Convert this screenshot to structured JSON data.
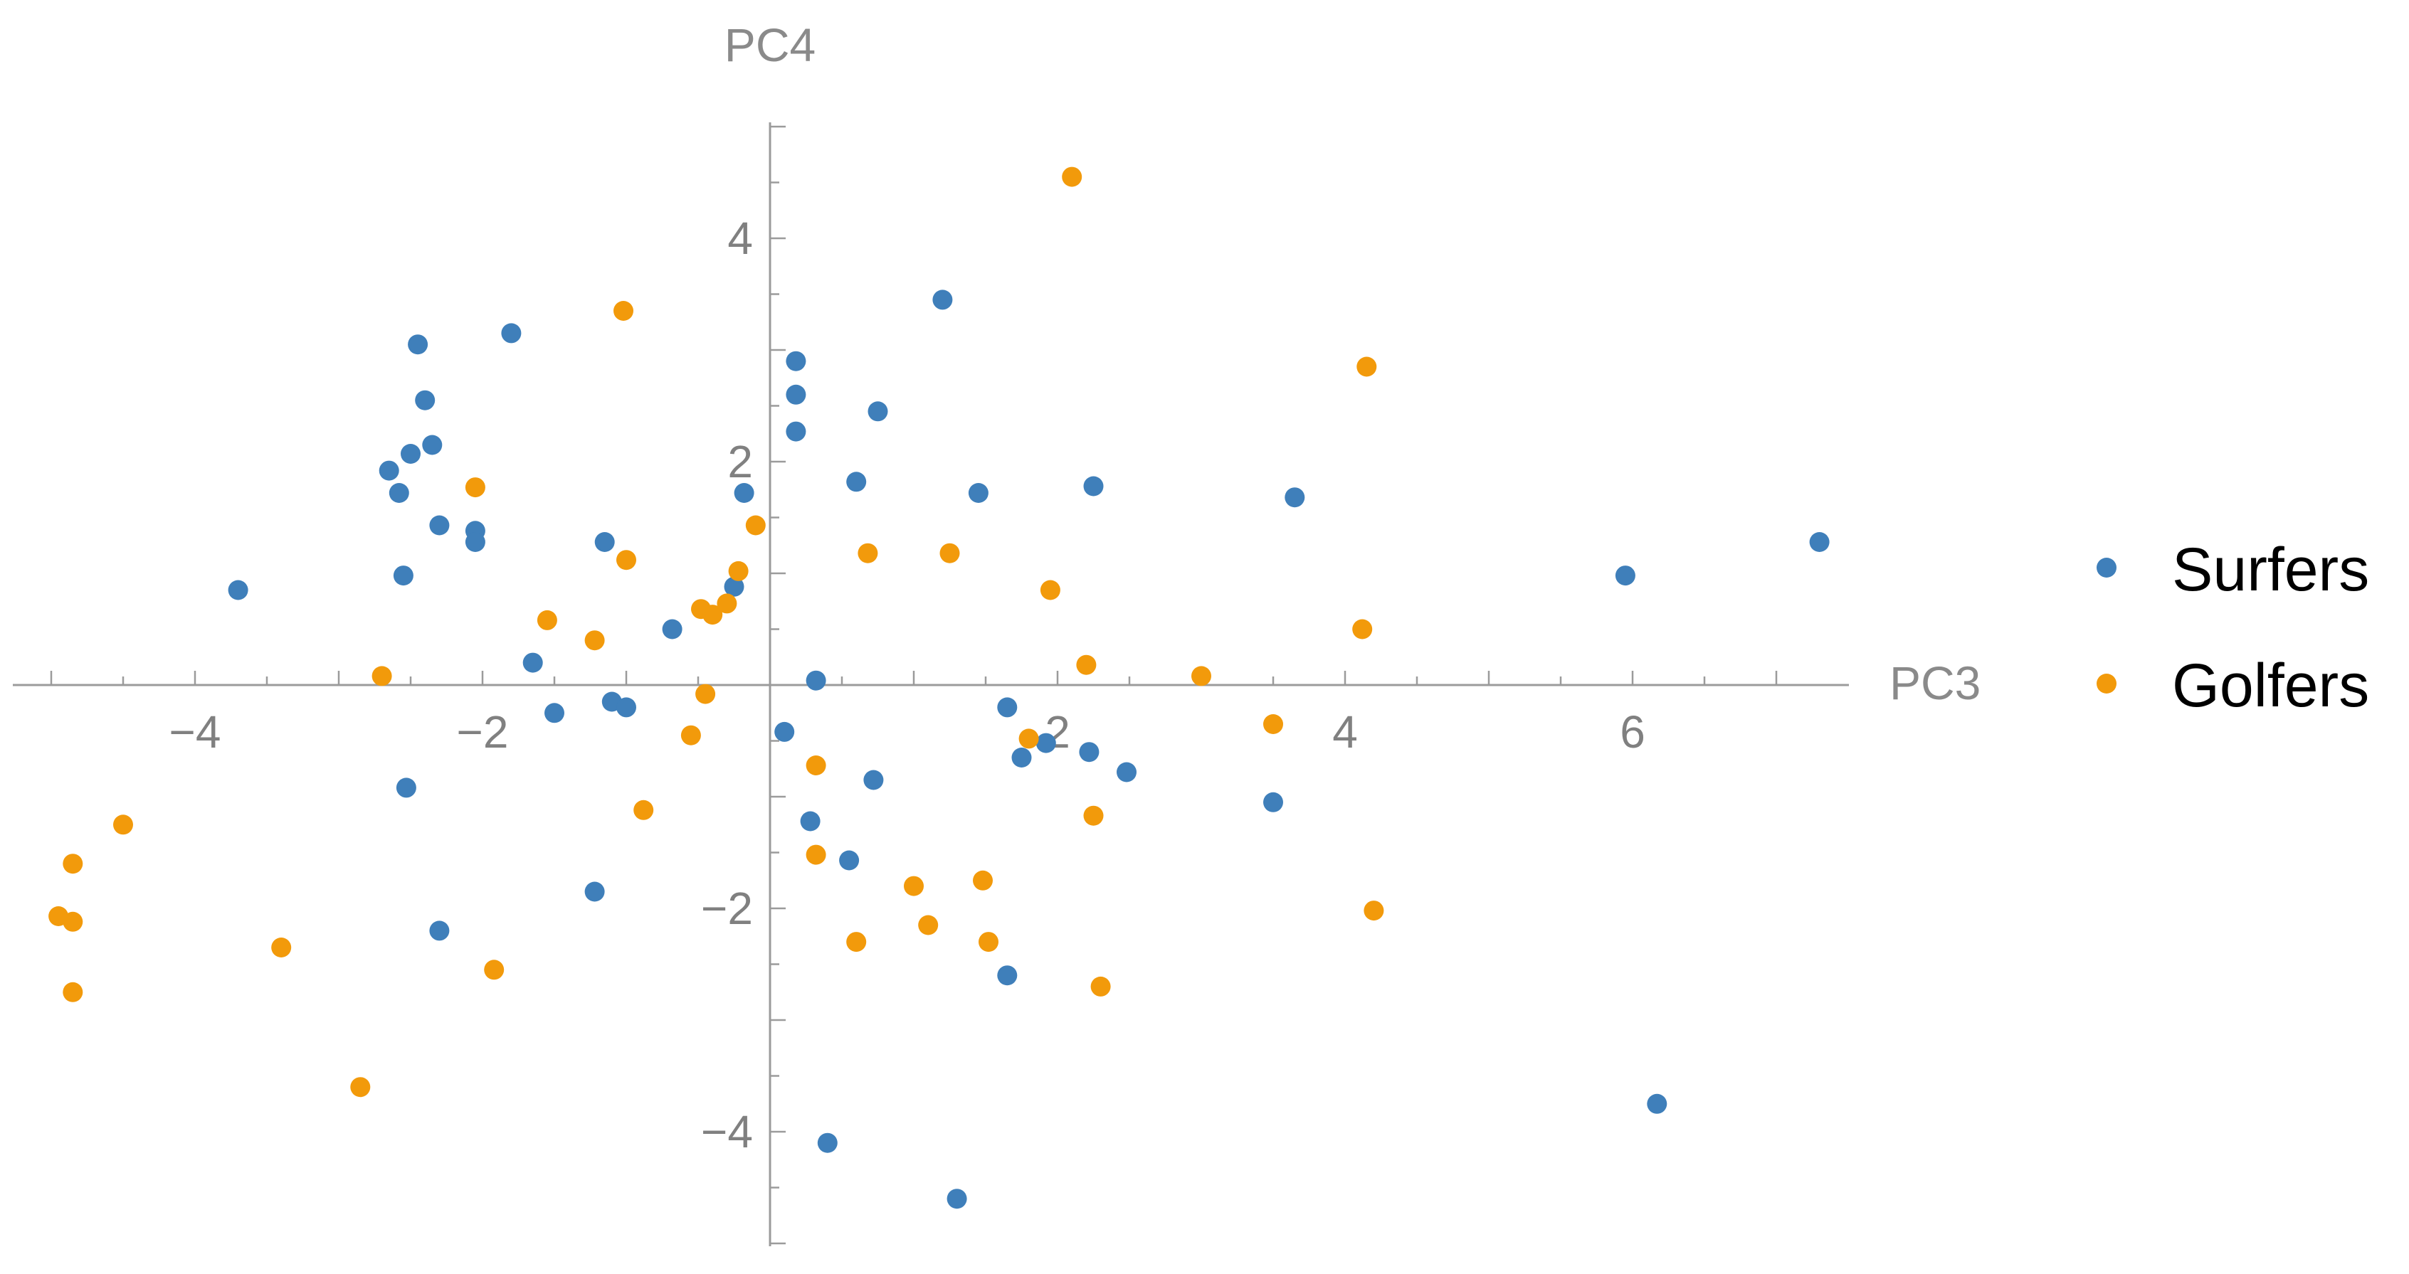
{
  "chart_data": {
    "type": "scatter",
    "xlabel": "PC3",
    "ylabel": "PC4",
    "xlim": [
      -5.2,
      7.5
    ],
    "ylim": [
      -5.0,
      5.1
    ],
    "x_ticks": [
      -4,
      -2,
      2,
      4,
      6
    ],
    "y_ticks": [
      -4,
      -2,
      2,
      4
    ],
    "grid": false,
    "legend_position": "right",
    "series": [
      {
        "name": "Surfers",
        "color": "#3f7fba",
        "points": [
          [
            -3.7,
            0.85
          ],
          [
            -2.45,
            3.05
          ],
          [
            -2.4,
            2.55
          ],
          [
            -2.65,
            1.92
          ],
          [
            -2.5,
            2.07
          ],
          [
            -2.35,
            2.15
          ],
          [
            -2.58,
            1.72
          ],
          [
            -2.3,
            1.43
          ],
          [
            -2.05,
            1.38
          ],
          [
            -2.05,
            1.28
          ],
          [
            -2.55,
            0.98
          ],
          [
            -1.8,
            3.15
          ],
          [
            -1.65,
            0.2
          ],
          [
            -1.5,
            -0.25
          ],
          [
            -1.15,
            1.28
          ],
          [
            -1.1,
            -0.15
          ],
          [
            -1.0,
            -0.2
          ],
          [
            -0.68,
            0.5
          ],
          [
            -0.25,
            0.88
          ],
          [
            -0.18,
            1.72
          ],
          [
            0.18,
            2.9
          ],
          [
            0.18,
            2.6
          ],
          [
            0.18,
            2.27
          ],
          [
            0.1,
            -0.42
          ],
          [
            0.32,
            0.04
          ],
          [
            0.28,
            -1.22
          ],
          [
            0.6,
            1.82
          ],
          [
            0.75,
            2.45
          ],
          [
            0.72,
            -0.85
          ],
          [
            0.55,
            -1.57
          ],
          [
            1.2,
            3.45
          ],
          [
            1.45,
            1.72
          ],
          [
            1.65,
            -0.2
          ],
          [
            1.65,
            -2.6
          ],
          [
            1.75,
            -0.65
          ],
          [
            1.92,
            -0.52
          ],
          [
            2.22,
            -0.6
          ],
          [
            2.48,
            -0.78
          ],
          [
            2.25,
            1.78
          ],
          [
            3.5,
            -1.05
          ],
          [
            3.65,
            1.68
          ],
          [
            5.95,
            0.98
          ],
          [
            7.3,
            1.28
          ],
          [
            6.17,
            -3.75
          ],
          [
            -2.53,
            -0.92
          ],
          [
            -2.3,
            -2.2
          ],
          [
            -1.22,
            -1.85
          ],
          [
            0.4,
            -4.1
          ],
          [
            1.3,
            -4.6
          ]
        ]
      },
      {
        "name": "Golfers",
        "color": "#f29a0b",
        "points": [
          [
            -4.95,
            -2.07
          ],
          [
            -4.85,
            -2.12
          ],
          [
            -4.85,
            -1.6
          ],
          [
            -4.5,
            -1.25
          ],
          [
            -4.85,
            -2.75
          ],
          [
            -3.4,
            -2.35
          ],
          [
            -2.85,
            -3.6
          ],
          [
            -2.7,
            0.08
          ],
          [
            -2.05,
            1.77
          ],
          [
            -1.92,
            -2.55
          ],
          [
            -1.55,
            0.58
          ],
          [
            -1.22,
            0.4
          ],
          [
            -1.02,
            3.35
          ],
          [
            -1.0,
            1.12
          ],
          [
            -0.88,
            -1.12
          ],
          [
            -0.55,
            -0.45
          ],
          [
            -0.48,
            0.68
          ],
          [
            -0.4,
            0.63
          ],
          [
            -0.3,
            0.73
          ],
          [
            -0.22,
            1.02
          ],
          [
            -0.45,
            -0.08
          ],
          [
            -0.1,
            1.43
          ],
          [
            0.32,
            -0.72
          ],
          [
            0.32,
            -1.52
          ],
          [
            0.6,
            -2.3
          ],
          [
            0.68,
            1.18
          ],
          [
            1.0,
            -1.8
          ],
          [
            1.1,
            -2.15
          ],
          [
            1.25,
            1.18
          ],
          [
            1.48,
            -1.75
          ],
          [
            1.52,
            -2.3
          ],
          [
            1.95,
            0.85
          ],
          [
            1.8,
            -0.48
          ],
          [
            2.1,
            4.55
          ],
          [
            2.2,
            0.18
          ],
          [
            2.25,
            -1.17
          ],
          [
            2.3,
            -2.7
          ],
          [
            3.0,
            0.08
          ],
          [
            3.5,
            -0.35
          ],
          [
            4.12,
            0.5
          ],
          [
            4.15,
            2.85
          ],
          [
            4.2,
            -2.02
          ]
        ]
      }
    ]
  }
}
